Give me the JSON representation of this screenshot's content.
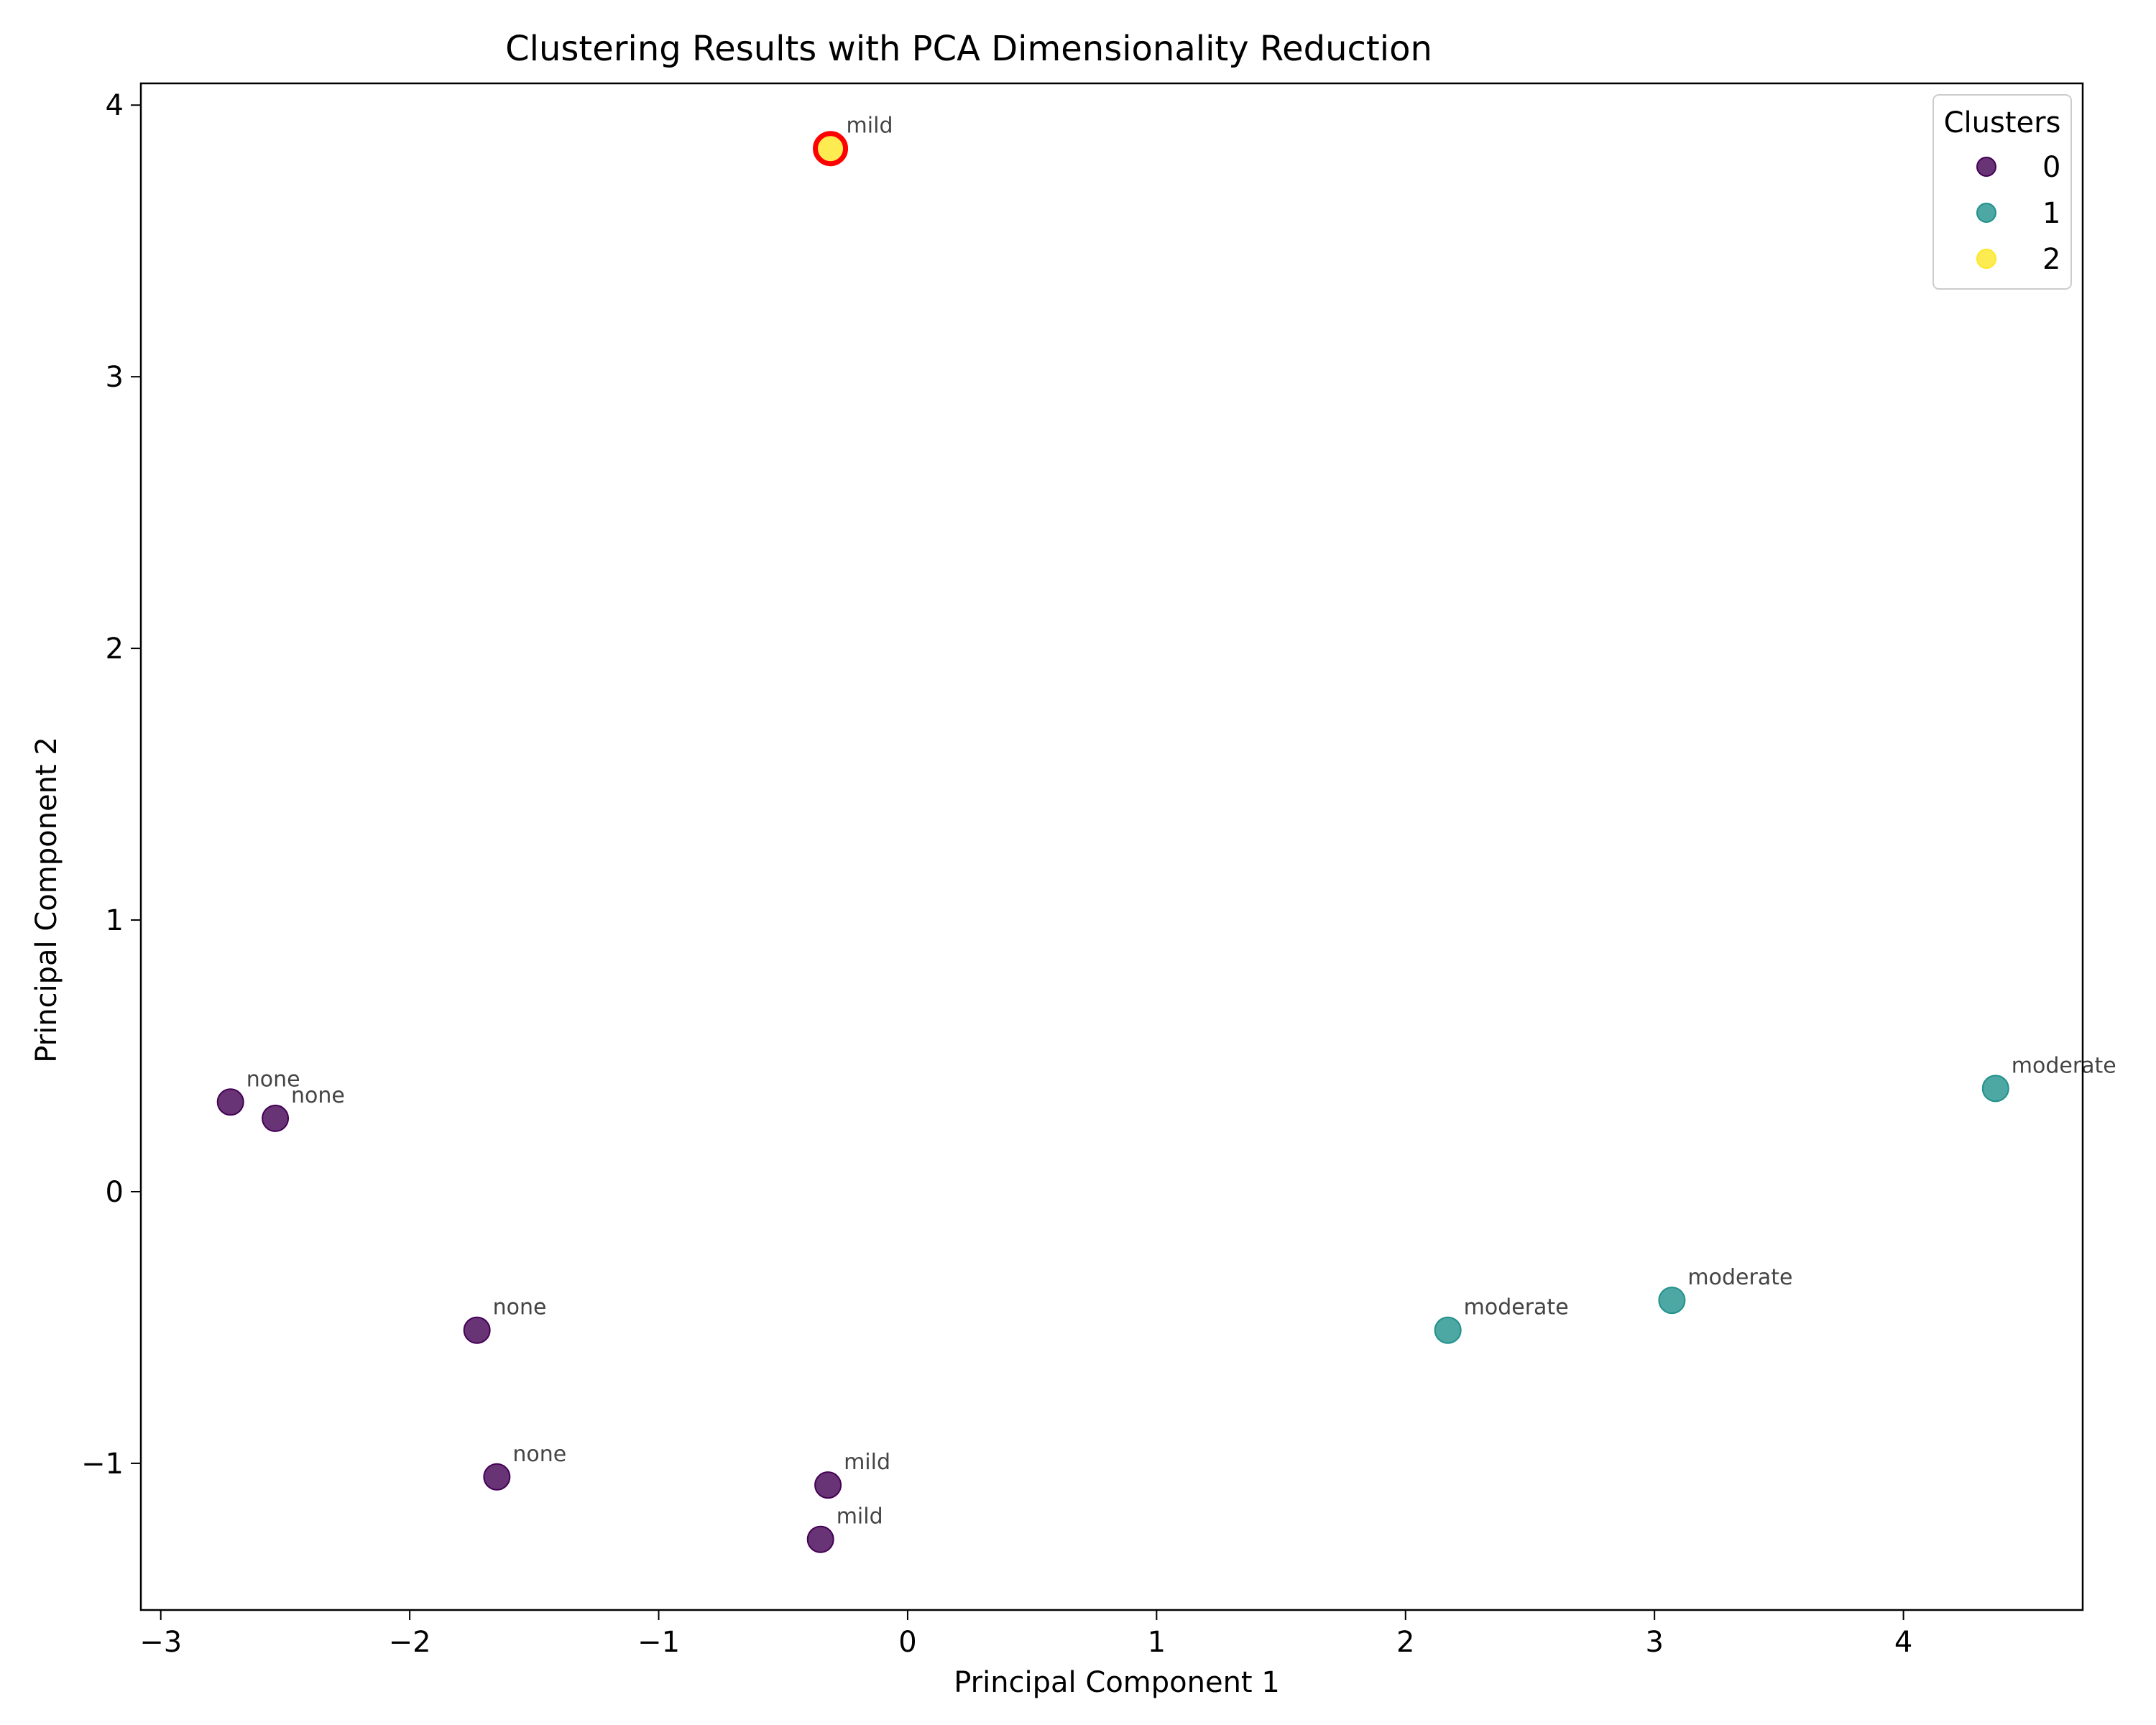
{
  "chart_data": {
    "type": "scatter",
    "title": "Clustering Results with PCA Dimensionality Reduction",
    "xlabel": "Principal Component 1",
    "ylabel": "Principal Component 2",
    "xlim": [
      -3.08,
      4.72
    ],
    "ylim": [
      -1.54,
      4.08
    ],
    "xticks": [
      -3,
      -2,
      -1,
      0,
      1,
      2,
      3,
      4
    ],
    "yticks": [
      -1,
      0,
      1,
      2,
      3,
      4
    ],
    "xtick_labels": [
      "−3",
      "−2",
      "−1",
      "0",
      "1",
      "2",
      "3",
      "4"
    ],
    "ytick_labels": [
      "−1",
      "0",
      "1",
      "2",
      "3",
      "4"
    ],
    "grid": false,
    "legend": {
      "title": "Clusters",
      "placement": "top-right",
      "entries": [
        {
          "label": "0",
          "color": "#440154"
        },
        {
          "label": "1",
          "color": "#21918c"
        },
        {
          "label": "2",
          "color": "#fde725"
        }
      ]
    },
    "points": [
      {
        "x": -2.72,
        "y": 0.33,
        "cluster": 0,
        "label": "none"
      },
      {
        "x": -2.54,
        "y": 0.27,
        "cluster": 0,
        "label": "none"
      },
      {
        "x": -1.73,
        "y": -0.51,
        "cluster": 0,
        "label": "none"
      },
      {
        "x": -1.65,
        "y": -1.05,
        "cluster": 0,
        "label": "none"
      },
      {
        "x": -0.32,
        "y": -1.08,
        "cluster": 0,
        "label": "mild"
      },
      {
        "x": -0.35,
        "y": -1.28,
        "cluster": 0,
        "label": "mild"
      },
      {
        "x": -0.31,
        "y": 3.84,
        "cluster": 2,
        "label": "mild",
        "highlight": true
      },
      {
        "x": 2.17,
        "y": -0.51,
        "cluster": 1,
        "label": "moderate"
      },
      {
        "x": 3.07,
        "y": -0.4,
        "cluster": 1,
        "label": "moderate"
      },
      {
        "x": 4.37,
        "y": 0.38,
        "cluster": 1,
        "label": "moderate"
      }
    ],
    "highlight_color": "#ff0000"
  }
}
